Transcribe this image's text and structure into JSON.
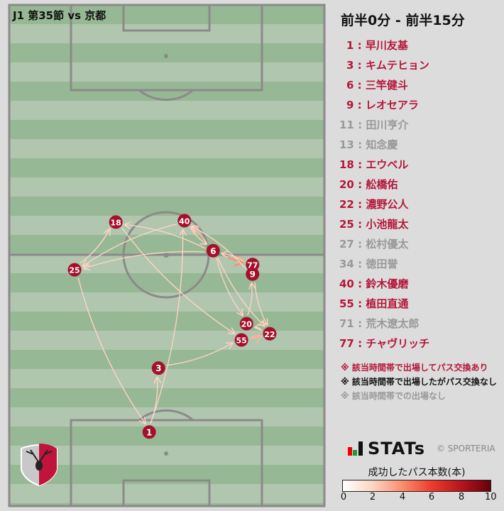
{
  "title": "J1 第35節 vs 京都",
  "period": "前半0分 - 前半15分",
  "colors": {
    "played_pass": "#b5173a",
    "played_nopass": "#111111",
    "not_played": "#999999",
    "node": "#a50f2a"
  },
  "players": [
    {
      "label": "1 : 早川友基",
      "status": "played_pass"
    },
    {
      "label": "3 : キムテヒョン",
      "status": "played_pass"
    },
    {
      "label": "6 : 三竿健斗",
      "status": "played_pass"
    },
    {
      "label": "9 : レオセアラ",
      "status": "played_pass"
    },
    {
      "label": "11 : 田川亨介",
      "status": "not_played"
    },
    {
      "label": "13 : 知念慶",
      "status": "not_played"
    },
    {
      "label": "18 : エウベル",
      "status": "played_pass"
    },
    {
      "label": "20 : 舩橋佑",
      "status": "played_pass"
    },
    {
      "label": "22 : 濃野公人",
      "status": "played_pass"
    },
    {
      "label": "25 : 小池龍太",
      "status": "played_pass"
    },
    {
      "label": "27 : 松村優太",
      "status": "not_played"
    },
    {
      "label": "34 : 徳田誉",
      "status": "not_played"
    },
    {
      "label": "40 : 鈴木優磨",
      "status": "played_pass"
    },
    {
      "label": "55 : 植田直通",
      "status": "played_pass"
    },
    {
      "label": "71 : 荒木遼太郎",
      "status": "not_played"
    },
    {
      "label": "77 : チャヴリッチ",
      "status": "played_pass"
    }
  ],
  "notes": [
    "※ 該当時間帯で出場してパス交換あり",
    "※ 該当時間帯で出場したがパス交換なし",
    "※ 該当時間帯での出場なし"
  ],
  "brand": {
    "logo": "STATs",
    "copyright": "© SPORTERIA"
  },
  "scale": {
    "title": "成功したパス本数(本)",
    "min": 0,
    "max": 10,
    "ticks": [
      "0",
      "2",
      "4",
      "6",
      "8",
      "10"
    ]
  },
  "nodes": [
    {
      "num": "1",
      "x": 30.2,
      "y": 89.5
    },
    {
      "num": "3",
      "x": 32.2,
      "y": 76.1
    },
    {
      "num": "6",
      "x": 44.0,
      "y": 51.5
    },
    {
      "num": "9",
      "x": 52.5,
      "y": 56.4
    },
    {
      "num": "18",
      "x": 23.0,
      "y": 45.5
    },
    {
      "num": "20",
      "x": 51.2,
      "y": 66.8
    },
    {
      "num": "22",
      "x": 56.2,
      "y": 68.9
    },
    {
      "num": "25",
      "x": 14.1,
      "y": 55.5
    },
    {
      "num": "40",
      "x": 37.8,
      "y": 45.2
    },
    {
      "num": "55",
      "x": 50.1,
      "y": 70.2
    },
    {
      "num": "77",
      "x": 52.5,
      "y": 54.4
    }
  ],
  "passes": [
    {
      "from": "25",
      "to": "18",
      "count": 1
    },
    {
      "from": "40",
      "to": "25",
      "count": 1
    },
    {
      "from": "6",
      "to": "25",
      "count": 1
    },
    {
      "from": "6",
      "to": "18",
      "count": 1
    },
    {
      "from": "6",
      "to": "40",
      "count": 2
    },
    {
      "from": "40",
      "to": "6",
      "count": 1
    },
    {
      "from": "6",
      "to": "77",
      "count": 3
    },
    {
      "from": "77",
      "to": "6",
      "count": 1
    },
    {
      "from": "9",
      "to": "40",
      "count": 1
    },
    {
      "from": "6",
      "to": "20",
      "count": 1
    },
    {
      "from": "6",
      "to": "22",
      "count": 1
    },
    {
      "from": "20",
      "to": "9",
      "count": 1
    },
    {
      "from": "9",
      "to": "22",
      "count": 1
    },
    {
      "from": "22",
      "to": "20",
      "count": 1
    },
    {
      "from": "55",
      "to": "22",
      "count": 2
    },
    {
      "from": "18",
      "to": "55",
      "count": 1
    },
    {
      "from": "3",
      "to": "55",
      "count": 1
    },
    {
      "from": "1",
      "to": "3",
      "count": 1
    },
    {
      "from": "1",
      "to": "40",
      "count": 1
    },
    {
      "from": "25",
      "to": "1",
      "count": 1
    }
  ]
}
